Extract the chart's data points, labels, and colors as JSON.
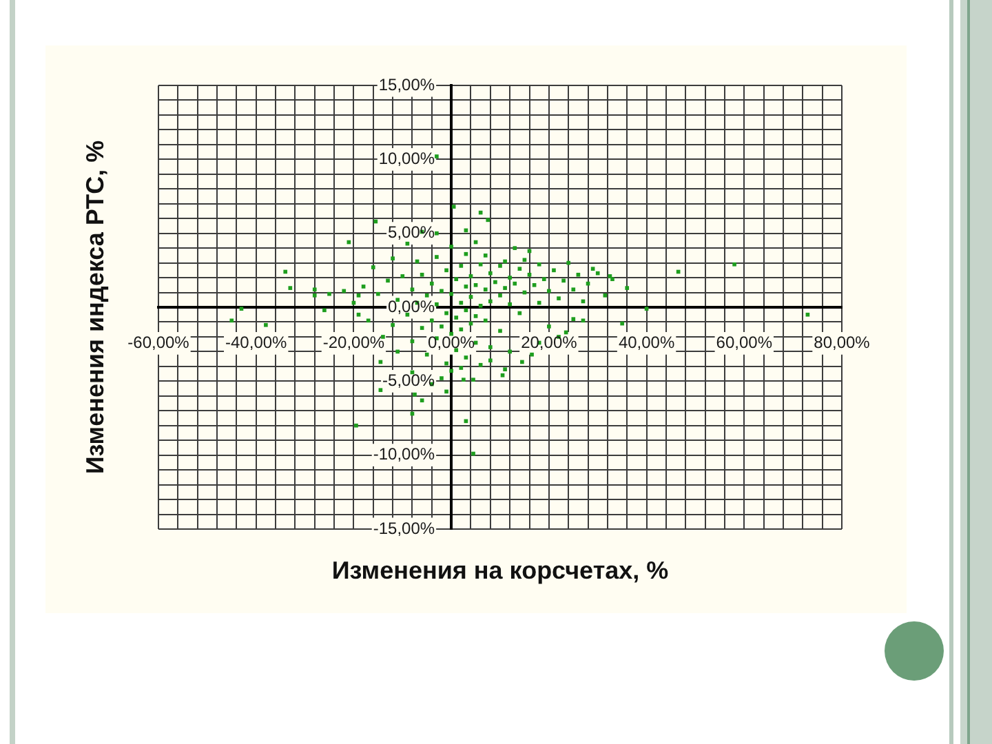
{
  "chart_data": {
    "type": "scatter",
    "xlabel": "Изменения на корсчетах, %",
    "ylabel": "Изменения индекса РТС, %",
    "color": "#1e9e1e",
    "marker": "square",
    "grid": true,
    "xlim": [
      -60,
      80
    ],
    "ylim": [
      -15,
      15
    ],
    "xticks": [
      {
        "value": -60,
        "label": "-60,00%"
      },
      {
        "value": -56,
        "label": null
      },
      {
        "value": -52,
        "label": null
      },
      {
        "value": -48,
        "label": null
      },
      {
        "value": -44,
        "label": null
      },
      {
        "value": -40,
        "label": "-40,00%"
      },
      {
        "value": -36,
        "label": null
      },
      {
        "value": -32,
        "label": null
      },
      {
        "value": -28,
        "label": null
      },
      {
        "value": -24,
        "label": null
      },
      {
        "value": -20,
        "label": "-20,00%"
      },
      {
        "value": -16,
        "label": null
      },
      {
        "value": -12,
        "label": null
      },
      {
        "value": -8,
        "label": null
      },
      {
        "value": -4,
        "label": null
      },
      {
        "value": 0,
        "label": "0,00%"
      },
      {
        "value": 4,
        "label": null
      },
      {
        "value": 8,
        "label": null
      },
      {
        "value": 12,
        "label": null
      },
      {
        "value": 16,
        "label": null
      },
      {
        "value": 20,
        "label": "20,00%"
      },
      {
        "value": 24,
        "label": null
      },
      {
        "value": 28,
        "label": null
      },
      {
        "value": 32,
        "label": null
      },
      {
        "value": 36,
        "label": null
      },
      {
        "value": 40,
        "label": "40,00%"
      },
      {
        "value": 44,
        "label": null
      },
      {
        "value": 48,
        "label": null
      },
      {
        "value": 52,
        "label": null
      },
      {
        "value": 56,
        "label": null
      },
      {
        "value": 60,
        "label": "60,00%"
      },
      {
        "value": 64,
        "label": null
      },
      {
        "value": 68,
        "label": null
      },
      {
        "value": 72,
        "label": null
      },
      {
        "value": 76,
        "label": null
      },
      {
        "value": 80,
        "label": "80,00%"
      }
    ],
    "yticks": [
      {
        "value": -15,
        "label": "-15,00%"
      },
      {
        "value": -14,
        "label": null
      },
      {
        "value": -13,
        "label": null
      },
      {
        "value": -12,
        "label": null
      },
      {
        "value": -11,
        "label": null
      },
      {
        "value": -10,
        "label": "-10,00%"
      },
      {
        "value": -9,
        "label": null
      },
      {
        "value": -8,
        "label": null
      },
      {
        "value": -7,
        "label": null
      },
      {
        "value": -6,
        "label": null
      },
      {
        "value": -5,
        "label": "-5,00%"
      },
      {
        "value": -4,
        "label": null
      },
      {
        "value": -3,
        "label": null
      },
      {
        "value": -2,
        "label": null
      },
      {
        "value": -1,
        "label": null
      },
      {
        "value": 0,
        "label": "0,00%"
      },
      {
        "value": 1,
        "label": null
      },
      {
        "value": 2,
        "label": null
      },
      {
        "value": 3,
        "label": null
      },
      {
        "value": 4,
        "label": null
      },
      {
        "value": 5,
        "label": "5,00%"
      },
      {
        "value": 6,
        "label": null
      },
      {
        "value": 7,
        "label": null
      },
      {
        "value": 8,
        "label": null
      },
      {
        "value": 9,
        "label": null
      },
      {
        "value": 10,
        "label": "10,00%"
      },
      {
        "value": 11,
        "label": null
      },
      {
        "value": 12,
        "label": null
      },
      {
        "value": 13,
        "label": null
      },
      {
        "value": 14,
        "label": null
      },
      {
        "value": 15,
        "label": "15,00%"
      }
    ],
    "x": [
      58,
      46.5,
      73,
      40,
      32.5,
      29,
      6,
      7.5,
      0.5,
      -3,
      -15.5,
      -21,
      -34,
      -33,
      -45,
      -43,
      -38,
      -28,
      -28,
      -25,
      -22,
      -26,
      -19.5,
      3,
      4.5,
      -8,
      -7.5,
      -1,
      2.5,
      4.5,
      10.5,
      -14.5,
      -14.5,
      35,
      27,
      23.5,
      -17,
      -19,
      14.5,
      16.5,
      31.5,
      36,
      -10,
      -9,
      -8,
      -8,
      -7,
      -7,
      -6,
      -6,
      -5,
      -5,
      -4,
      -4,
      -3,
      -3,
      -3,
      -2,
      -2,
      -1,
      -1,
      -1,
      0,
      0,
      0,
      1,
      1,
      1,
      2,
      2,
      2,
      3,
      3,
      3,
      3,
      4,
      4,
      4,
      5,
      5,
      5,
      6,
      6,
      7,
      7,
      7,
      8,
      8,
      8,
      9,
      10,
      10,
      10,
      11,
      11,
      12,
      12,
      13,
      14,
      14,
      15,
      15,
      16,
      17,
      18,
      18,
      19,
      20,
      20,
      21,
      22,
      23,
      24,
      25,
      26,
      27,
      28,
      30,
      33,
      -12,
      -12,
      -11,
      -13,
      -14,
      -15,
      -16,
      -18,
      -19,
      -20,
      -11,
      -9,
      -8,
      -6,
      -3,
      -2,
      0,
      2,
      3,
      5,
      8,
      12,
      13,
      16,
      18,
      22,
      25,
      11,
      6,
      -4,
      -6
    ],
    "values": [
      2.9,
      2.4,
      -0.5,
      -0.1,
      2.1,
      2.6,
      6.4,
      5.9,
      6.8,
      10.2,
      5.8,
      4.4,
      2.4,
      1.3,
      -0.9,
      -0.1,
      -1.2,
      1.2,
      0.8,
      0.9,
      1.1,
      -0.2,
      -8,
      -7.7,
      -9.9,
      -7.2,
      -5.9,
      -5.7,
      -4.9,
      -4.9,
      -4.6,
      -3.7,
      -5.6,
      -1.1,
      -0.9,
      -1.7,
      -0.9,
      0.8,
      -3.7,
      -3.2,
      0.8,
      1.3,
      2.1,
      -0.5,
      1.2,
      -2.3,
      3.1,
      0.3,
      -1.4,
      2.2,
      0.8,
      -3.2,
      1.6,
      -0.9,
      3.4,
      0.2,
      -2.1,
      1.1,
      -1.3,
      2.5,
      -0.4,
      -3.8,
      0.9,
      -1.8,
      4.1,
      1.9,
      -0.7,
      -2.9,
      0.3,
      2.8,
      -1.5,
      1.4,
      -0.2,
      3.6,
      -3.4,
      0.7,
      2.1,
      -1.1,
      1.5,
      -0.6,
      -2.4,
      2.9,
      0.1,
      1.2,
      3.5,
      -0.9,
      0.4,
      2.3,
      -2.7,
      1.7,
      2.8,
      0.8,
      -1.6,
      1.3,
      3.1,
      0.2,
      2,
      1.6,
      2.6,
      -0.4,
      1,
      3.2,
      2.2,
      1.5,
      2.9,
      0.3,
      1.9,
      1.1,
      -1.3,
      2.5,
      0.6,
      1.8,
      3,
      1.2,
      2.2,
      0.4,
      1.6,
      2.3,
      1.9,
      -1.2,
      3.3,
      0.5,
      1.8,
      -2,
      0.9,
      2.7,
      1.4,
      -0.5,
      0.3,
      -3,
      4.3,
      -4.4,
      5.1,
      5,
      -4.8,
      -4.3,
      -4.1,
      5.2,
      4.4,
      -3.6,
      -3,
      4,
      3.8,
      -2.4,
      -2,
      -0.8,
      -4.2,
      -3.9,
      -5.2,
      -6.3
    ]
  }
}
